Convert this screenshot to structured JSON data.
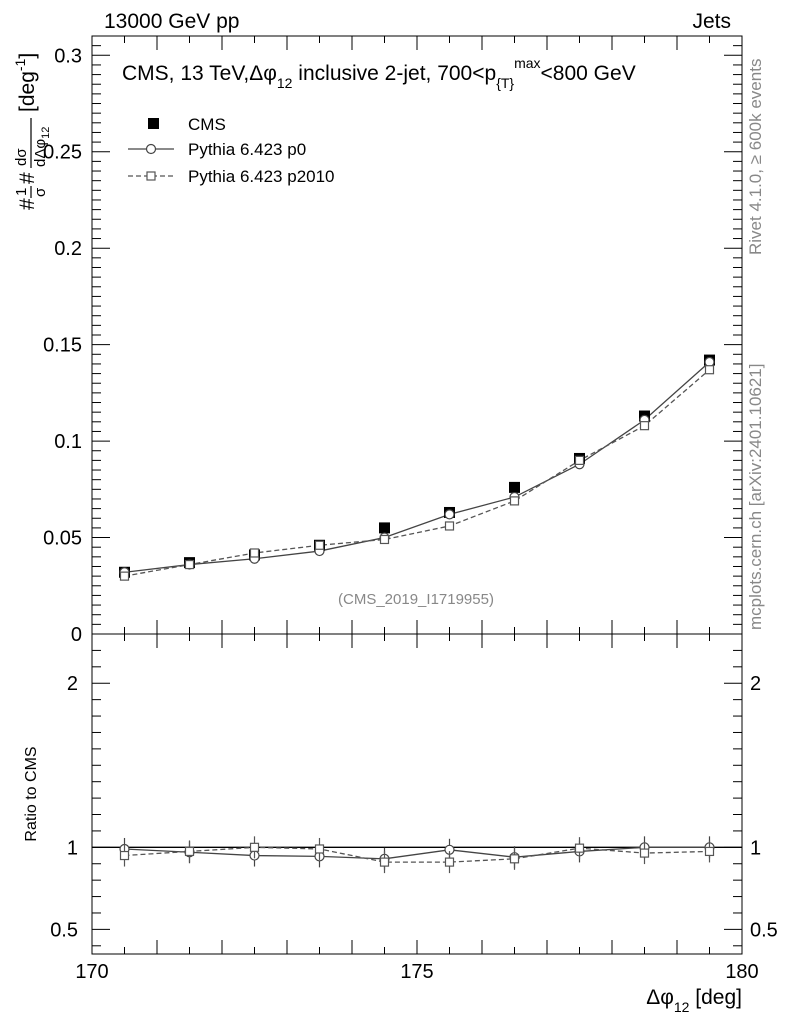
{
  "header": {
    "left": "13000 GeV pp",
    "right": "Jets"
  },
  "side_labels": {
    "rivet": "Rivet 4.1.0, ≥ 600k events",
    "mcplots": "mcplots.cern.ch [arXiv:2401.10621]"
  },
  "chart_data": [
    {
      "type": "scatter",
      "panel": "main",
      "title": "CMS, 13 TeV,Δφ",
      "title_sub": "12",
      "title_rest": " inclusive 2-jet, 700<p",
      "title_sub2": "{T}",
      "title_sup": "max",
      "title_end": "<800 GeV",
      "ylabel": "#1/σ #dσ/dΔφ_12 [deg^-1]",
      "ylabel_parts": {
        "a": "#",
        "b": "1",
        "c": "σ",
        "d": "#",
        "e": "dσ",
        "f": "dΔφ",
        "g": "12",
        "h": "[deg",
        "i": "-1",
        "j": "]"
      },
      "watermark": "(CMS_2019_I1719955)",
      "xlim": [
        170,
        180
      ],
      "ylim": [
        0,
        0.31
      ],
      "yticks": [
        "0",
        "0.05",
        "0.1",
        "0.15",
        "0.2",
        "0.25",
        "0.3"
      ],
      "legend": [
        "CMS",
        "Pythia 6.423 p0",
        "Pythia 6.423 p2010"
      ],
      "x": [
        170.5,
        171.5,
        172.5,
        173.5,
        174.5,
        175.5,
        176.5,
        177.5,
        178.5,
        179.5
      ],
      "series": [
        {
          "name": "CMS",
          "marker": "filled-square",
          "values": [
            0.032,
            0.037,
            0.041,
            0.046,
            0.055,
            0.063,
            0.076,
            0.091,
            0.113,
            0.142
          ]
        },
        {
          "name": "Pythia 6.423 p0",
          "marker": "open-circle",
          "line": "solid",
          "values": [
            0.032,
            0.036,
            0.039,
            0.043,
            0.05,
            0.062,
            0.071,
            0.088,
            0.111,
            0.141
          ]
        },
        {
          "name": "Pythia 6.423 p2010",
          "marker": "open-square",
          "line": "dashed",
          "values": [
            0.03,
            0.036,
            0.042,
            0.046,
            0.049,
            0.056,
            0.069,
            0.09,
            0.108,
            0.137
          ]
        }
      ]
    },
    {
      "type": "scatter",
      "panel": "ratio",
      "ylabel": "Ratio to CMS",
      "xlabel_main": "Δφ",
      "xlabel_sub": "12",
      "xlabel_unit": " [deg]",
      "xlim": [
        170,
        180
      ],
      "ylim": [
        0.35,
        2.3
      ],
      "yticks": [
        "0.5",
        "1",
        "2"
      ],
      "xticks": [
        "170",
        "175",
        "180"
      ],
      "x": [
        170.5,
        171.5,
        172.5,
        173.5,
        174.5,
        175.5,
        176.5,
        177.5,
        178.5,
        179.5
      ],
      "series": [
        {
          "name": "Pythia 6.423 p0",
          "marker": "open-circle",
          "line": "solid",
          "values": [
            0.99,
            0.97,
            0.95,
            0.945,
            0.93,
            0.985,
            0.94,
            0.975,
            1.0,
            1.0
          ]
        },
        {
          "name": "Pythia 6.423 p2010",
          "marker": "open-square",
          "line": "dashed",
          "values": [
            0.95,
            0.975,
            1.0,
            0.99,
            0.91,
            0.91,
            0.93,
            0.995,
            0.965,
            0.975
          ]
        }
      ]
    }
  ]
}
